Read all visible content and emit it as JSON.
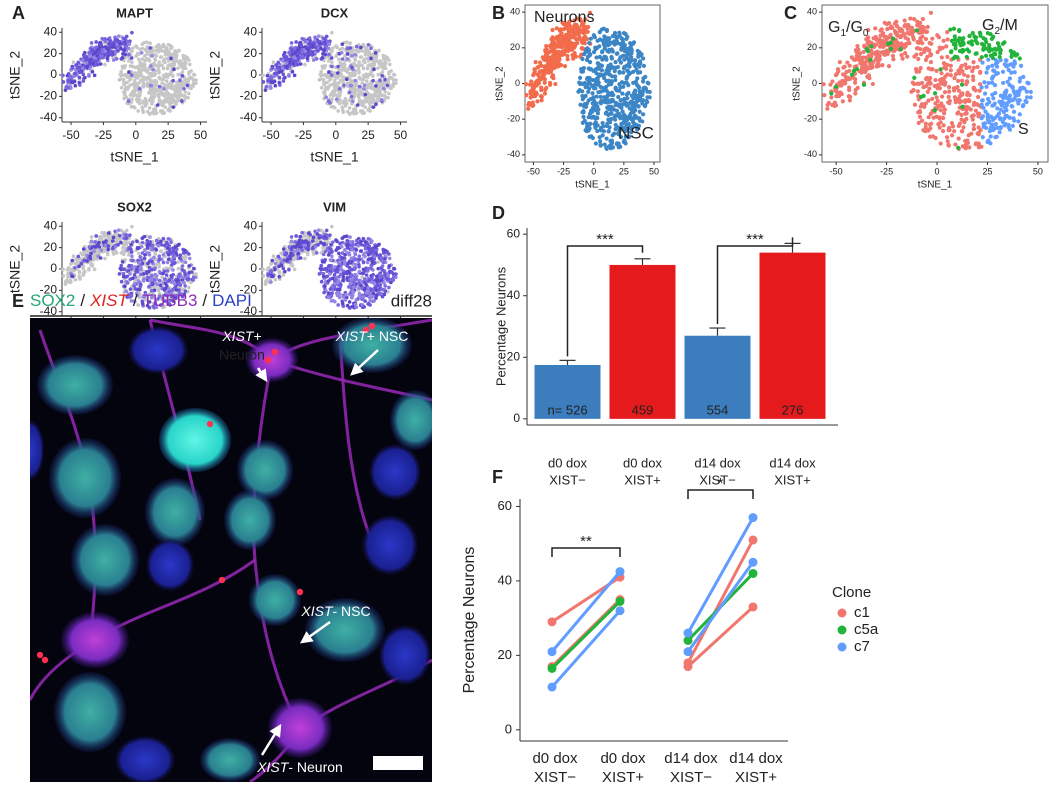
{
  "panel_letters": [
    "A",
    "B",
    "C",
    "D",
    "E",
    "F"
  ],
  "tsne": {
    "xlabel": "tSNE_1",
    "ylabel": "tSNE_2",
    "xlim": [
      -57,
      55
    ],
    "ylim": [
      -44,
      44
    ],
    "xticks": [
      -50,
      -25,
      0,
      25,
      50
    ],
    "yticks": [
      -40,
      -20,
      0,
      20,
      40
    ],
    "genes": [
      "MAPT",
      "DCX",
      "SOX2",
      "VIM"
    ],
    "clusters": [
      {
        "name": "Neurons",
        "color": "#f26b4b"
      },
      {
        "name": "NSC",
        "color": "#3d86c6"
      }
    ],
    "phases": [
      {
        "parts": [
          "G",
          "1",
          "/G",
          "0"
        ],
        "color": "#f0766e"
      },
      {
        "parts": [
          "G",
          "2",
          "/M"
        ],
        "color": "#22b33a"
      },
      {
        "parts": [
          "S"
        ],
        "color": "#619cff"
      }
    ]
  },
  "chart_data": [
    {
      "type": "bar",
      "ylabel": "Percentage Neurons",
      "categories": [
        [
          "d0 dox",
          "XIST−"
        ],
        [
          "d0 dox",
          "XIST+"
        ],
        [
          "d14 dox",
          "XIST−"
        ],
        [
          "d14 dox",
          "XIST+"
        ]
      ],
      "values": [
        17.5,
        50,
        27,
        54
      ],
      "errors": [
        1.5,
        2,
        2.5,
        3
      ],
      "colors": [
        "#3b7dbd",
        "#e41a1c",
        "#3b7dbd",
        "#e41a1c"
      ],
      "annotations": [
        "n= 526",
        "459",
        "554",
        "276"
      ],
      "significance": [
        "***",
        "***"
      ],
      "ylim": [
        -2,
        62
      ],
      "yticks": [
        0,
        20,
        40,
        60
      ]
    },
    {
      "type": "line",
      "ylabel": "Percentage Neurons",
      "categories": [
        [
          "d0 dox",
          "XIST−"
        ],
        [
          "d0 dox",
          "XIST+"
        ],
        [
          "d14 dox",
          "XIST−"
        ],
        [
          "d14 dox",
          "XIST+"
        ]
      ],
      "legend_title": "Clone",
      "series": [
        {
          "name": "c1",
          "color": "#f0766e",
          "values": [
            [
              29,
              41,
              18,
              51
            ],
            [
              17,
              35,
              17,
              33
            ]
          ]
        },
        {
          "name": "c5a",
          "color": "#22b33a",
          "values": [
            [
              16.5,
              34.5,
              24,
              42
            ]
          ]
        },
        {
          "name": "c7",
          "color": "#619cff",
          "values": [
            [
              21,
              42.5,
              26,
              57
            ],
            [
              11.5,
              32,
              21,
              45
            ]
          ]
        }
      ],
      "significance": [
        "**",
        "*"
      ],
      "ylim": [
        -3,
        62
      ],
      "yticks": [
        0,
        20,
        40,
        60
      ]
    }
  ],
  "image": {
    "channels": [
      {
        "name": "SOX2",
        "color": "#22a870",
        "italic": false
      },
      {
        "name": "XIST",
        "color": "#e0201c",
        "italic": true
      },
      {
        "name": "TUBB3",
        "color": "#8b2fb5",
        "italic": false
      },
      {
        "name": "DAPI",
        "color": "#2a40c8",
        "italic": false
      }
    ],
    "separator": "/",
    "timepoint": "diff28",
    "labels": [
      {
        "gene": "XIST",
        "text": "+",
        "line2": "Neuron"
      },
      {
        "gene": "XIST",
        "text": "+ NSC"
      },
      {
        "gene": "XIST",
        "text": "- NSC"
      },
      {
        "gene": "XIST",
        "text": "- Neuron"
      }
    ]
  }
}
